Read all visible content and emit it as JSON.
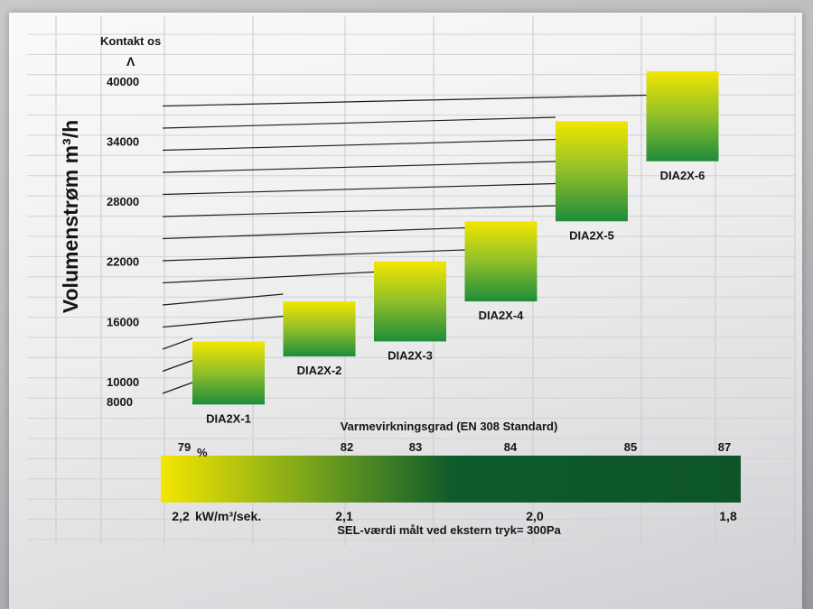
{
  "chart_data": {
    "type": "bar",
    "ylabel": "Volumenstrøm m³/h",
    "y_top_caption": "Kontakt os",
    "y_top_arrow": "Λ",
    "y_ticks": [
      "40000",
      "34000",
      "28000",
      "22000",
      "16000",
      "10000",
      "8000"
    ],
    "ylim": [
      7000,
      41000
    ],
    "bars": [
      {
        "label": "DIA2X-1",
        "low": 7700,
        "high": 14000
      },
      {
        "label": "DIA2X-2",
        "low": 12500,
        "high": 18000
      },
      {
        "label": "DIA2X-3",
        "low": 14000,
        "high": 22000
      },
      {
        "label": "DIA2X-4",
        "low": 18000,
        "high": 26000
      },
      {
        "label": "DIA2X-5",
        "low": 26000,
        "high": 36000
      },
      {
        "label": "DIA2X-6",
        "low": 32000,
        "high": 41000
      }
    ],
    "bar_gradient": {
      "top": "#f2e600",
      "bottom": "#1e8c3a"
    },
    "scale": {
      "top_title": "Varmevirkningsgrad (EN 308 Standard)",
      "top_values": [
        "79",
        "82",
        "83",
        "84",
        "85",
        "87"
      ],
      "top_unit": "%",
      "bottom_values": [
        "2,2",
        "2,1",
        "2,0",
        "1,8"
      ],
      "bottom_unit": "kW/m³/sek.",
      "bottom_title": "SEL-værdi målt ved ekstern tryk= 300Pa",
      "gradient": {
        "start": "#f4e600",
        "end": "#0f5c2a"
      }
    }
  }
}
